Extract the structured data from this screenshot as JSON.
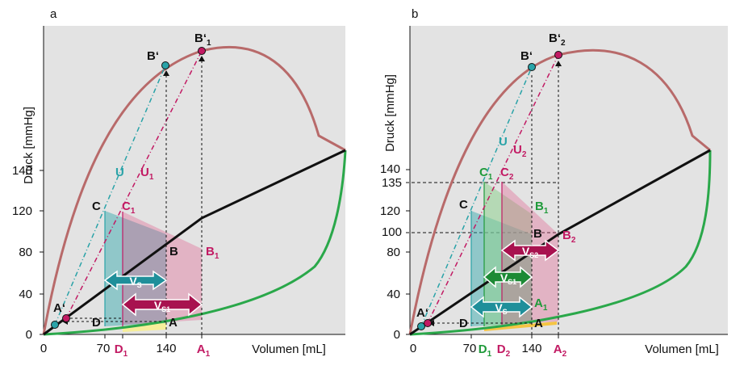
{
  "colors": {
    "bg": "#e3e3e3",
    "max_curve": "#b86a6a",
    "passive_curve": "#2aa84a",
    "isovolumic_line": "#111111",
    "teal": "#2aa3a8",
    "magenta": "#c21a63",
    "green_label": "#1f9a3a",
    "yellow": "#f6ee9a"
  },
  "panel_a": {
    "panel_label": "a",
    "y_axis_title": "Druck [mmHg]",
    "x_axis_title": "Volumen [mL]",
    "y_ticks": [
      "0",
      "40",
      "80",
      "120",
      "140"
    ],
    "x_ticks": [
      "0",
      "70",
      "140"
    ],
    "x_letters": {
      "d1": "D",
      "a1": "A"
    },
    "points": {
      "b_prime": "B‘",
      "b1_prime": "B‘",
      "b1_sub": "1",
      "u": "U",
      "u1": "U",
      "u1_sub": "1",
      "c": "C",
      "c1": "C",
      "c1_sub": "1",
      "b": "B",
      "b1": "B",
      "b1b_sub": "1",
      "a_prime": "A‘",
      "d": "D",
      "a": "A"
    },
    "vs": "V",
    "vs_sub": "S",
    "vs1_sub": "S1",
    "x_sub": {
      "d": "1",
      "a": "1"
    }
  },
  "panel_b": {
    "panel_label": "b",
    "y_axis_title": "Druck [mmHg]",
    "x_axis_title": "Volumen [mL]",
    "y_ticks": [
      "0",
      "40",
      "80",
      "120",
      "140"
    ],
    "y_ticks_green": [
      "135",
      "100"
    ],
    "x_ticks": [
      "0",
      "70",
      "140"
    ],
    "x_letters": {
      "d1": "D",
      "d2": "D",
      "a2": "A"
    },
    "x_sub": {
      "d1": "1",
      "d2": "2",
      "a2": "2"
    },
    "points": {
      "b_prime": "B‘",
      "b2_prime": "B‘",
      "b2_sub": "2",
      "u": "U",
      "u2": "U",
      "u2_sub": "2",
      "c": "C",
      "c1": "C",
      "c1_sub": "1",
      "c2": "C",
      "c2_sub": "2",
      "b1": "B",
      "b1_sub": "1",
      "b": "B",
      "b2": "B",
      "b2b_sub": "2",
      "a1": "A",
      "a1_sub": "1",
      "a_prime": "A‘",
      "d": "D",
      "a": "A"
    },
    "vs": "V",
    "vs_sub": "S",
    "vs1_sub": "S1",
    "vs2_sub": "S2"
  }
}
